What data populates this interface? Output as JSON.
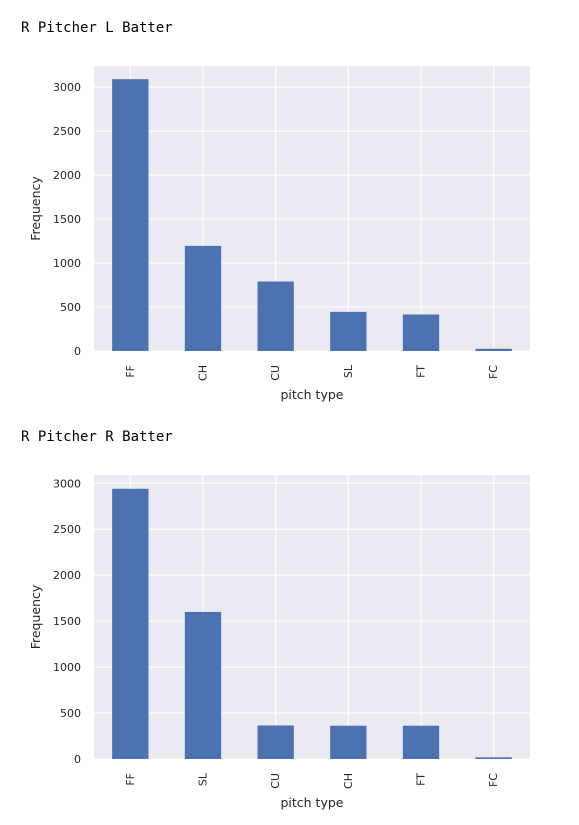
{
  "chart_data": [
    {
      "type": "bar",
      "title": "R Pitcher L Batter",
      "xlabel": "pitch type",
      "ylabel": "Frequency",
      "categories": [
        "FF",
        "CH",
        "CU",
        "SL",
        "FT",
        "FC"
      ],
      "values": [
        3090,
        1195,
        790,
        445,
        415,
        25
      ],
      "ylim": [
        0,
        3240
      ],
      "yticks": [
        0,
        500,
        1000,
        1500,
        2000,
        2500,
        3000
      ],
      "grid": true,
      "bar_color": "#4c72b0",
      "background": "#eaeaf2"
    },
    {
      "type": "bar",
      "title": "R Pitcher R Batter",
      "xlabel": "pitch type",
      "ylabel": "Frequency",
      "categories": [
        "FF",
        "SL",
        "CU",
        "CH",
        "FT",
        "FC"
      ],
      "values": [
        2940,
        1600,
        365,
        362,
        362,
        18
      ],
      "ylim": [
        0,
        3090
      ],
      "yticks": [
        0,
        500,
        1000,
        1500,
        2000,
        2500,
        3000
      ],
      "grid": true,
      "bar_color": "#4c72b0",
      "background": "#eaeaf2"
    }
  ]
}
